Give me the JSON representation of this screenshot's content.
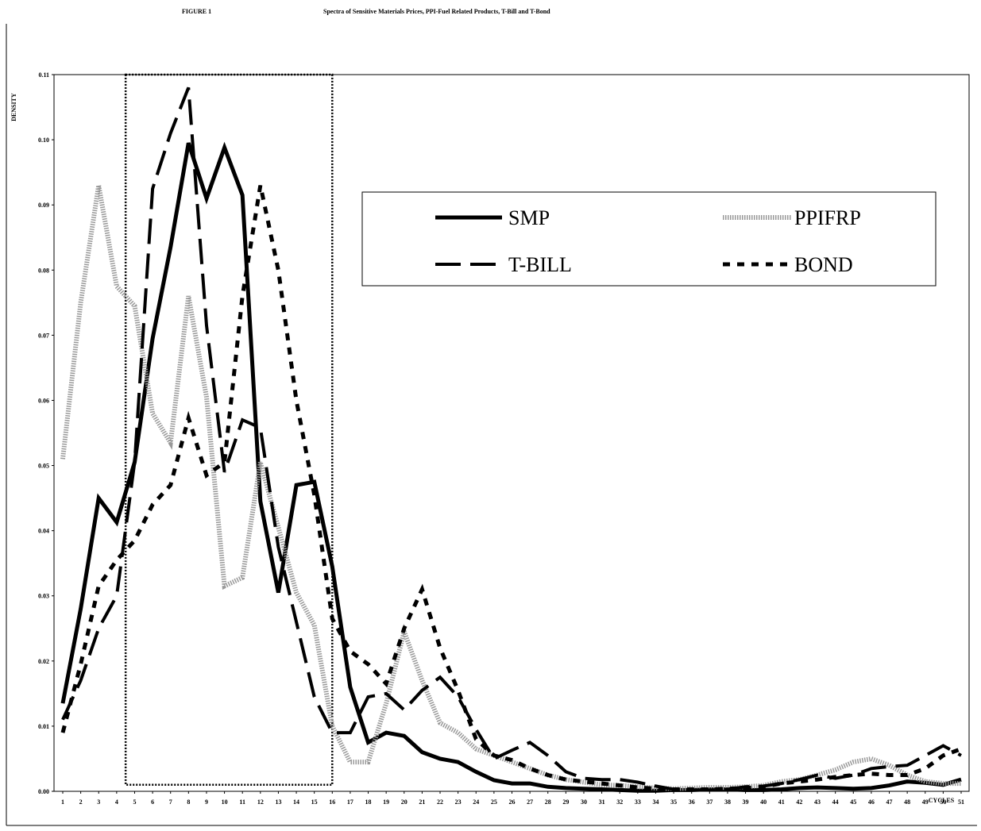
{
  "header": {
    "figure_label": "FIGURE 1",
    "title": "Spectra of Sensitive Materials Prices, PPI-Fuel Related Products, T-Bill and T-Bond"
  },
  "chart_data": {
    "type": "line",
    "title": "Spectra of Sensitive Materials Prices, PPI-Fuel Related Products, T-Bill and T-Bond",
    "xlabel": "CYCLES",
    "ylabel": "DENSITY",
    "x": [
      1,
      2,
      3,
      4,
      5,
      6,
      7,
      8,
      9,
      10,
      11,
      12,
      13,
      14,
      15,
      16,
      17,
      18,
      19,
      20,
      21,
      22,
      23,
      24,
      25,
      26,
      27,
      28,
      29,
      30,
      31,
      32,
      33,
      34,
      35,
      36,
      37,
      38,
      39,
      40,
      41,
      42,
      43,
      44,
      45,
      46,
      47,
      48,
      49,
      50,
      51
    ],
    "x_tick_labels": [
      "1",
      "2",
      "3",
      "4",
      "5",
      "6",
      "7",
      "8",
      "9",
      "10",
      "11",
      "12",
      "13",
      "14",
      "15",
      "16",
      "17",
      "18",
      "19",
      "20",
      "21",
      "22",
      "23",
      "24",
      "25",
      "26",
      "27",
      "28",
      "29",
      "30",
      "31",
      "32",
      "33",
      "34",
      "35",
      "36",
      "37",
      "38",
      "39",
      "40",
      "41",
      "42",
      "43",
      "44",
      "45",
      "46",
      "47",
      "48",
      "49",
      "50",
      "51"
    ],
    "y_tick_labels": [
      "0.00",
      "0.01",
      "0.02",
      "0.03",
      "0.04",
      "0.05",
      "0.06",
      "0.07",
      "0.08",
      "0.09",
      "0.10",
      "0.11"
    ],
    "ylim": [
      0,
      0.11
    ],
    "xlim": [
      1,
      51
    ],
    "grid": false,
    "legend": "upper-right, boxed",
    "highlight_box": {
      "x_from": 4.5,
      "x_to": 16,
      "y_from": 0.001,
      "y_to": 0.11
    },
    "series": [
      {
        "name": "SMP",
        "style": "solid",
        "color": "#000000",
        "values": [
          0.0135,
          0.028,
          0.045,
          0.0413,
          0.0505,
          0.0695,
          0.0835,
          0.0995,
          0.091,
          0.0988,
          0.0915,
          0.0445,
          0.0305,
          0.047,
          0.0475,
          0.0345,
          0.016,
          0.0075,
          0.009,
          0.0085,
          0.006,
          0.005,
          0.0045,
          0.003,
          0.0017,
          0.0012,
          0.0012,
          0.0007,
          0.0005,
          0.0004,
          0.0003,
          0.0002,
          0.0001,
          0.0001,
          0.0002,
          0.0002,
          0.0003,
          0.0003,
          0.0002,
          0.0002,
          0.0003,
          0.0005,
          0.0006,
          0.0005,
          0.0004,
          0.0005,
          0.0009,
          0.0015,
          0.0013,
          0.001,
          0.0018
        ]
      },
      {
        "name": "PPIFRP",
        "style": "dotted",
        "color": "#999999",
        "values": [
          0.051,
          0.075,
          0.093,
          0.0775,
          0.0745,
          0.058,
          0.0535,
          0.076,
          0.0605,
          0.0315,
          0.0328,
          0.0505,
          0.0405,
          0.0305,
          0.0255,
          0.01,
          0.0045,
          0.0045,
          0.0135,
          0.0245,
          0.017,
          0.0105,
          0.009,
          0.0065,
          0.0055,
          0.0045,
          0.0035,
          0.0025,
          0.0018,
          0.0014,
          0.001,
          0.0009,
          0.0007,
          0.0005,
          0.0004,
          0.0005,
          0.0006,
          0.0006,
          0.0007,
          0.0009,
          0.0015,
          0.0018,
          0.0025,
          0.0033,
          0.0045,
          0.005,
          0.004,
          0.0025,
          0.0015,
          0.0012,
          0.0012
        ]
      },
      {
        "name": "T-BILL",
        "style": "longdash",
        "color": "#000000",
        "values": [
          0.011,
          0.017,
          0.025,
          0.03,
          0.0505,
          0.0925,
          0.101,
          0.108,
          0.0715,
          0.049,
          0.057,
          0.0558,
          0.0375,
          0.026,
          0.0145,
          0.009,
          0.009,
          0.0145,
          0.015,
          0.0125,
          0.0155,
          0.0175,
          0.0145,
          0.0095,
          0.005,
          0.0063,
          0.0075,
          0.0055,
          0.003,
          0.002,
          0.0018,
          0.0018,
          0.0014,
          0.0008,
          0.0003,
          0.0002,
          0.0002,
          0.0003,
          0.0007,
          0.0008,
          0.0012,
          0.0018,
          0.0025,
          0.002,
          0.0025,
          0.0035,
          0.0038,
          0.004,
          0.0055,
          0.007,
          0.0055
        ]
      },
      {
        "name": "BOND",
        "style": "shortdash",
        "color": "#000000",
        "values": [
          0.009,
          0.0195,
          0.0315,
          0.0355,
          0.0385,
          0.044,
          0.047,
          0.0573,
          0.0485,
          0.0505,
          0.076,
          0.093,
          0.08,
          0.06,
          0.0455,
          0.0265,
          0.0215,
          0.0195,
          0.0165,
          0.025,
          0.031,
          0.022,
          0.0155,
          0.008,
          0.0055,
          0.0048,
          0.0035,
          0.0025,
          0.0018,
          0.0015,
          0.0012,
          0.0009,
          0.0006,
          0.0004,
          0.0003,
          0.0003,
          0.0003,
          0.0004,
          0.0005,
          0.0007,
          0.0012,
          0.0015,
          0.0018,
          0.0022,
          0.0025,
          0.0027,
          0.0025,
          0.0025,
          0.0035,
          0.0055,
          0.0065
        ]
      }
    ]
  }
}
